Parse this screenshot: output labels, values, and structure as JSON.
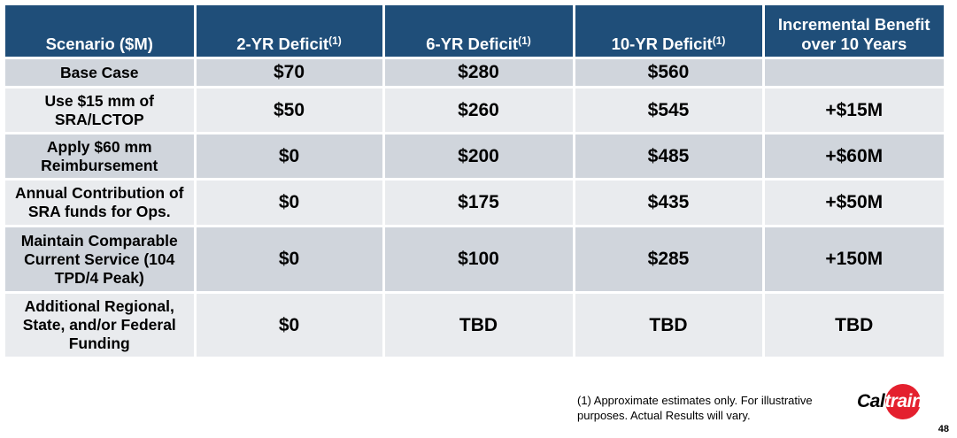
{
  "table": {
    "headers": [
      {
        "label": "Scenario ($M)",
        "note": ""
      },
      {
        "label": "2-YR Deficit",
        "note": "(1)"
      },
      {
        "label": "6-YR Deficit",
        "note": "(1)"
      },
      {
        "label": "10-YR Deficit",
        "note": "(1)"
      },
      {
        "label": "Incremental Benefit over 10 Years",
        "note": ""
      }
    ],
    "rows": [
      {
        "scenario": "Base Case",
        "two_yr": "$70",
        "six_yr": "$280",
        "ten_yr": "$560",
        "benefit": ""
      },
      {
        "scenario": "Use $15 mm of SRA/LCTOP",
        "two_yr": "$50",
        "six_yr": "$260",
        "ten_yr": "$545",
        "benefit": "+$15M"
      },
      {
        "scenario": "Apply $60 mm Reimbursement",
        "two_yr": "$0",
        "six_yr": "$200",
        "ten_yr": "$485",
        "benefit": "+$60M"
      },
      {
        "scenario": "Annual Contribution of SRA funds for Ops.",
        "two_yr": "$0",
        "six_yr": "$175",
        "ten_yr": "$435",
        "benefit": "+$50M"
      },
      {
        "scenario": "Maintain Comparable Current Service (104 TPD/4 Peak)",
        "two_yr": "$0",
        "six_yr": "$100",
        "ten_yr": "$285",
        "benefit": "+150M"
      },
      {
        "scenario": "Additional Regional, State, and/or Federal Funding",
        "two_yr": "$0",
        "six_yr": "TBD",
        "ten_yr": "TBD",
        "benefit": "TBD"
      }
    ]
  },
  "footnote": "(1) Approximate estimates only.  For illustrative purposes.  Actual Results will vary.",
  "logo": {
    "part1": "Cal",
    "part2": "train"
  },
  "page_number": "48",
  "colors": {
    "header_bg": "#1f4e79",
    "base_case_red": "#e4202e",
    "row_dark": "#d0d5dc",
    "row_light": "#e9ebee"
  }
}
